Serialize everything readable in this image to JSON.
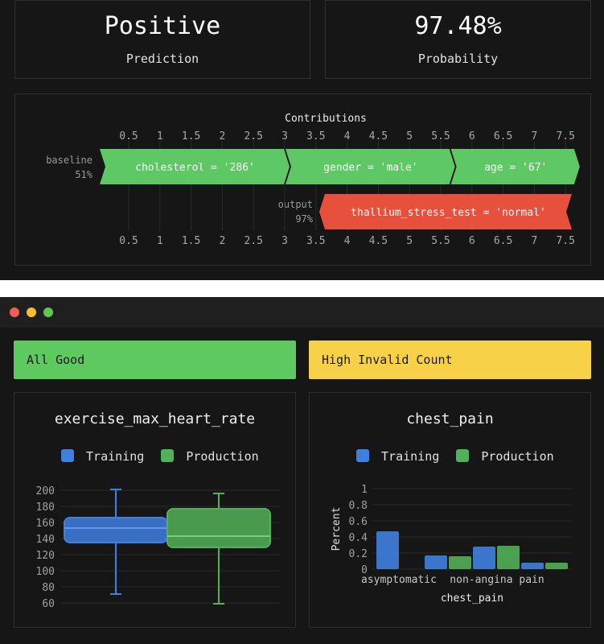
{
  "prediction": {
    "value": "Positive",
    "label": "Prediction"
  },
  "probability": {
    "value": "97.48%",
    "label": "Probability"
  },
  "contributions": {
    "title": "Contributions",
    "ticks": [
      "0.5",
      "1",
      "1.5",
      "2",
      "2.5",
      "3",
      "3.5",
      "4",
      "4.5",
      "5",
      "5.5",
      "6",
      "6.5",
      "7",
      "7.5"
    ],
    "baseline_label": "baseline",
    "baseline_value": "51%",
    "output_label": "output",
    "output_value": "97%",
    "positive": [
      {
        "label": "cholesterol = '286'",
        "start": 0.0,
        "end": 3.0
      },
      {
        "label": "gender = 'male'",
        "start": 3.0,
        "end": 5.65
      },
      {
        "label": "age = '67'",
        "start": 5.65,
        "end": 7.65
      }
    ],
    "negative": [
      {
        "label": "thallium_stress_test = 'normal'",
        "start": 7.65,
        "end": 3.6
      }
    ],
    "colors": {
      "positive": "#5ec964",
      "negative": "#e8503e"
    }
  },
  "window": {
    "dots": [
      "#ed5f57",
      "#f6be2f",
      "#5fc653"
    ],
    "status_left": {
      "text": "All Good",
      "color": "#5ec95e"
    },
    "status_right": {
      "text": "High Invalid Count",
      "color": "#f7d248"
    }
  },
  "legend": {
    "training": "Training",
    "production": "Production"
  },
  "chart_data": [
    {
      "type": "box",
      "title": "exercise_max_heart_rate",
      "ylim": [
        60,
        200
      ],
      "yticks": [
        "200",
        "180",
        "160",
        "140",
        "120",
        "100",
        "80",
        "60"
      ],
      "series": [
        {
          "name": "Training",
          "color": "#3f7fe0",
          "min": 71,
          "q1": 135,
          "median": 153,
          "q3": 166,
          "max": 201
        },
        {
          "name": "Production",
          "color": "#52b058",
          "min": 59,
          "q1": 129,
          "median": 143,
          "q3": 177,
          "max": 196
        }
      ]
    },
    {
      "type": "bar",
      "title": "chest_pain",
      "xlabel": "chest_pain",
      "ylabel": "Percent",
      "ylim": [
        0,
        1
      ],
      "yticks": [
        "1",
        "0.8",
        "0.6",
        "0.4",
        "0.2",
        "0"
      ],
      "categories": [
        "asymptomatic",
        "non-angina pain",
        "",
        ""
      ],
      "series": [
        {
          "name": "Training",
          "color": "#3f7fe0",
          "values": [
            0.47,
            0.17,
            0.28,
            0.08
          ]
        },
        {
          "name": "Production",
          "color": "#52b058",
          "values": [
            0.0,
            0.16,
            0.29,
            0.08
          ]
        }
      ]
    }
  ]
}
